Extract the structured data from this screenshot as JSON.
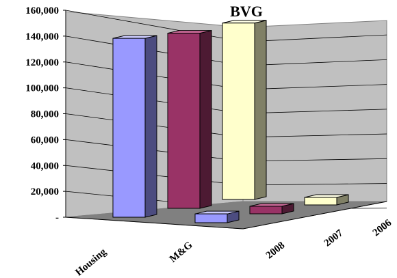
{
  "chart_data": {
    "type": "bar",
    "title": "BVG",
    "xlabel": "",
    "ylabel": "",
    "ylim": [
      0,
      160000
    ],
    "y_ticks": [
      "-",
      "20,000",
      "40,000",
      "60,000",
      "80,000",
      "100,000",
      "120,000",
      "140,000",
      "160,000"
    ],
    "categories": [
      "Housing",
      "M&G"
    ],
    "series": [
      {
        "name": "2008",
        "values": [
          143000,
          7000
        ]
      },
      {
        "name": "2007",
        "values": [
          140000,
          6000
        ]
      },
      {
        "name": "2006",
        "values": [
          141000,
          6000
        ]
      }
    ],
    "grid": true,
    "legend": "depth-axis labels (bottom-right)",
    "colors": {
      "series_2008": "#9999ff",
      "series_2007": "#993366",
      "series_2006": "#ffffcc",
      "wall": "#c0c0c0",
      "floor": "#808080"
    }
  }
}
